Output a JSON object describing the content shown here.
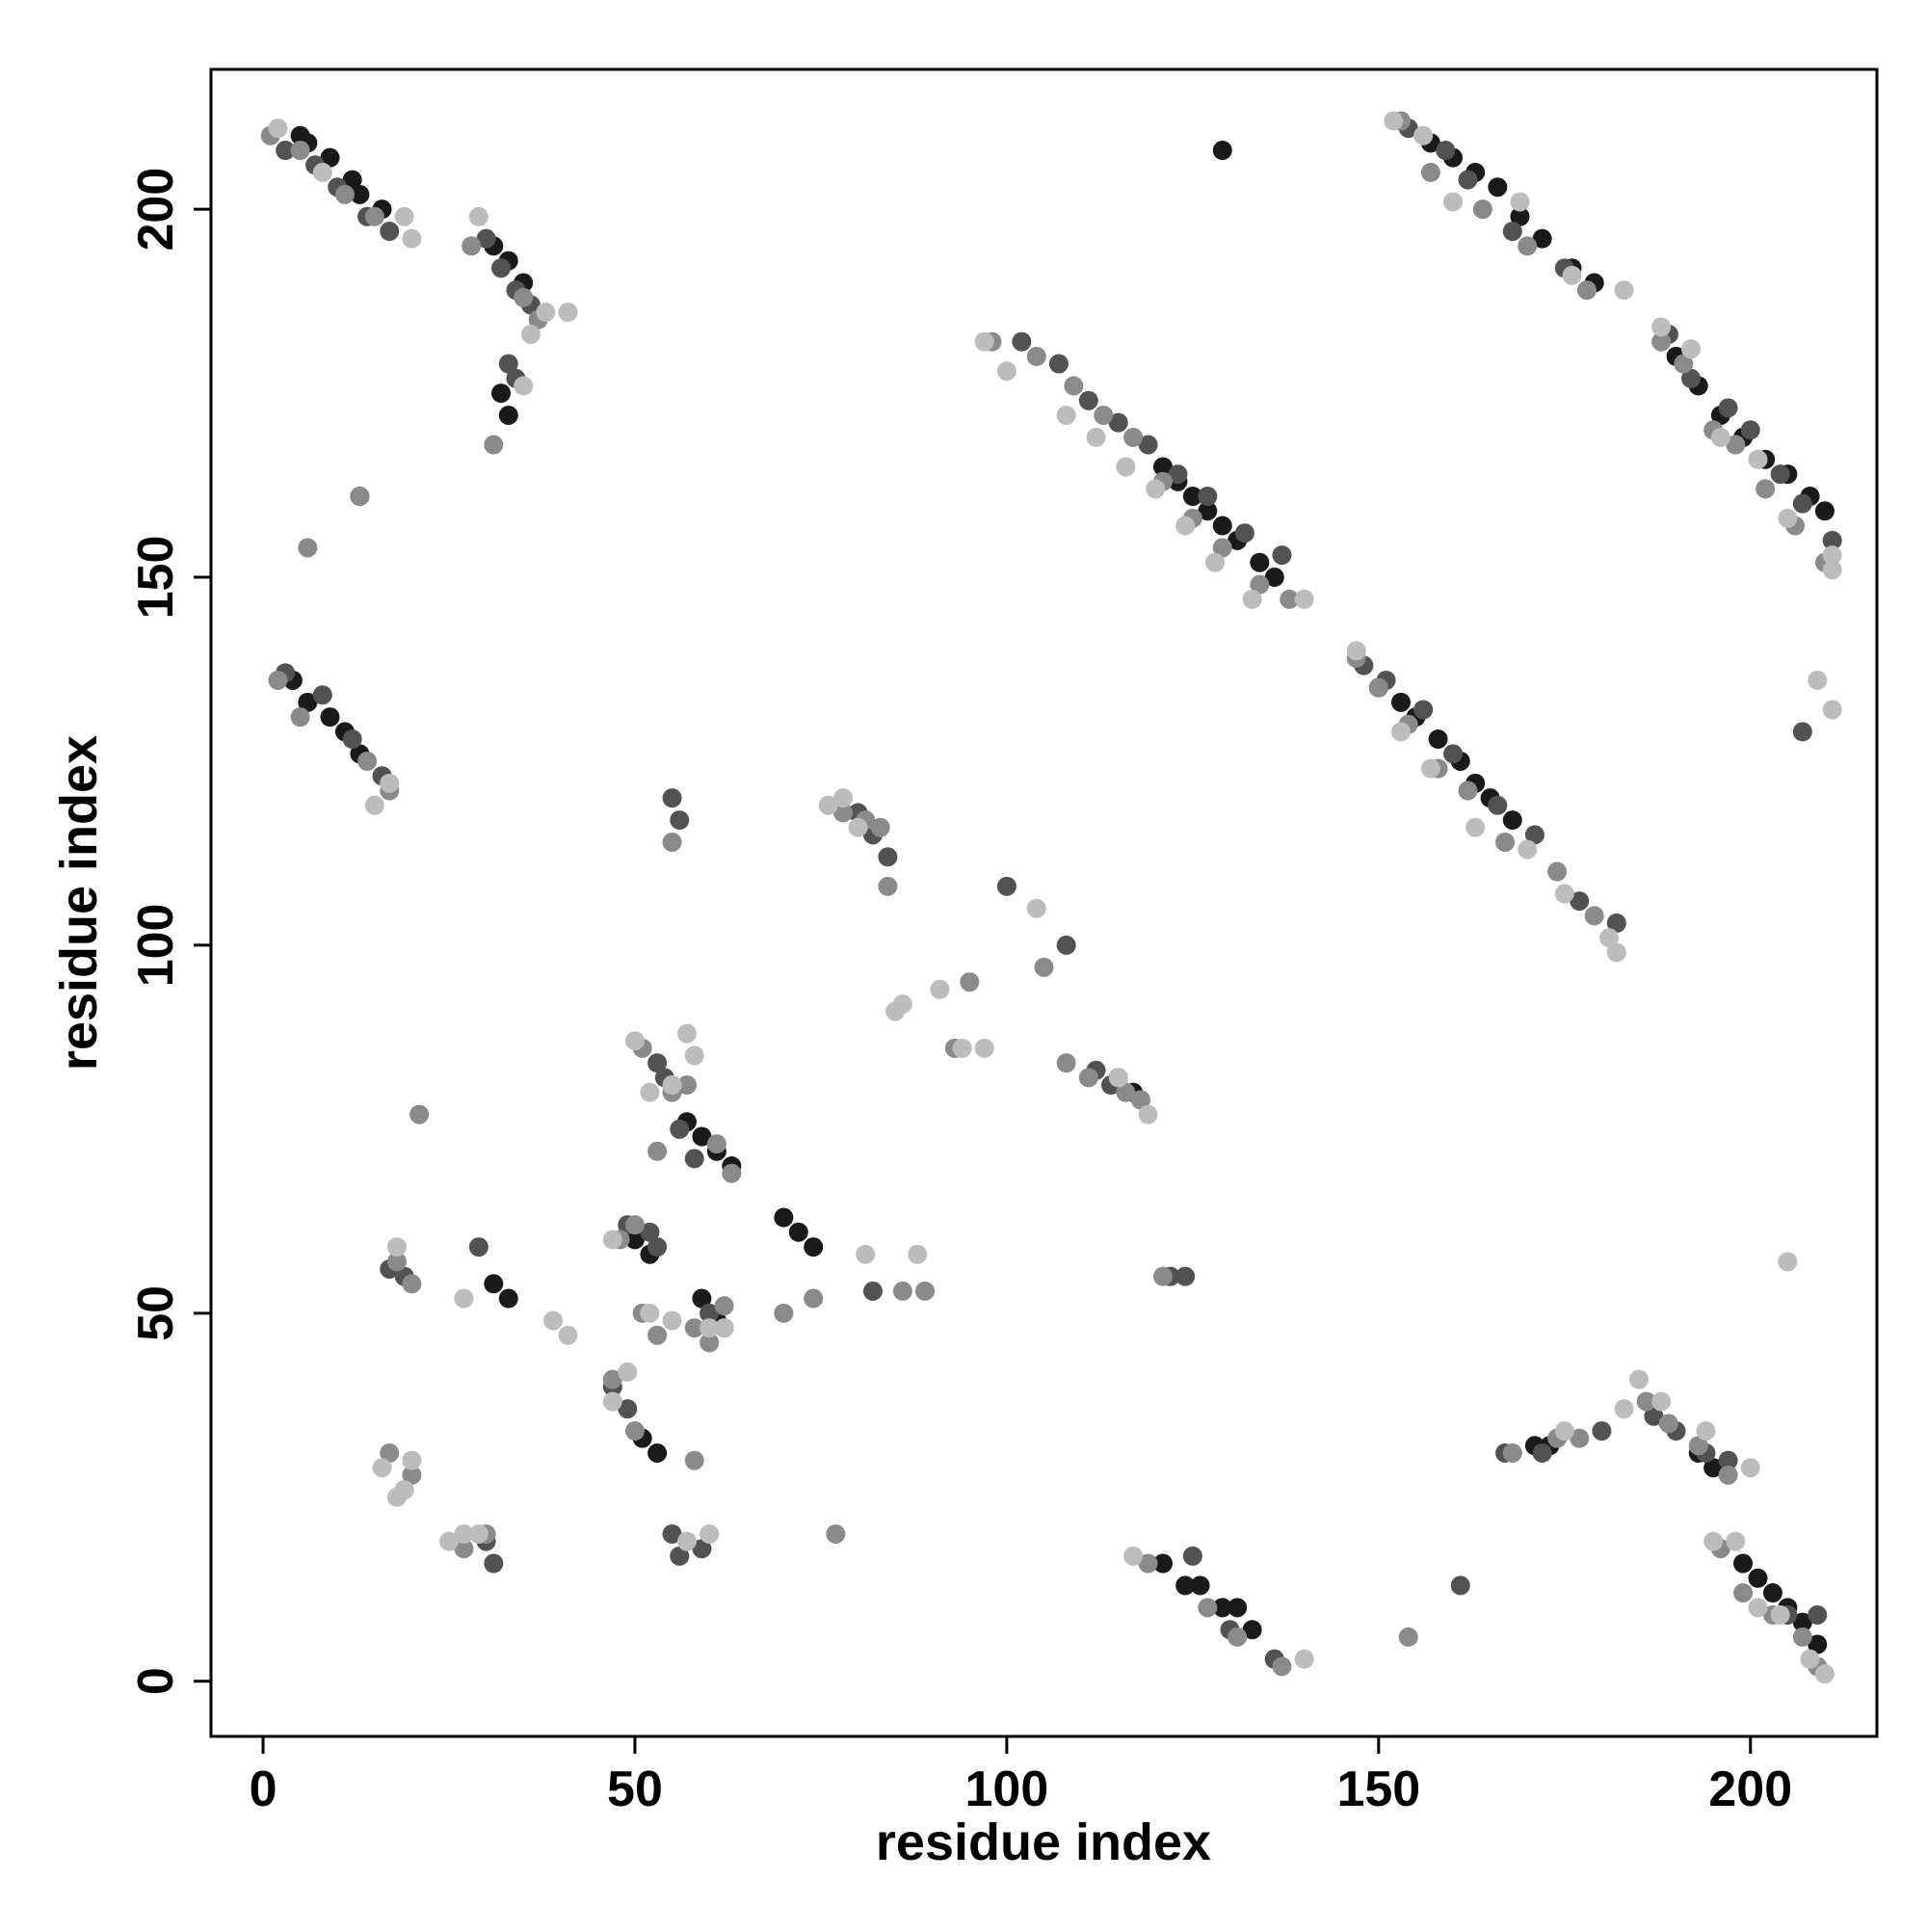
{
  "chart_data": {
    "type": "scatter",
    "xlabel": "residue index",
    "ylabel": "residue index",
    "xlim": [
      -7,
      217
    ],
    "ylim": [
      -7.5,
      219
    ],
    "xticks": [
      0,
      50,
      100,
      150,
      200
    ],
    "yticks": [
      0,
      50,
      100,
      150,
      200
    ],
    "series": [
      {
        "color": "#1a1a1a",
        "x": [
          5,
          6,
          9,
          12,
          13,
          16,
          31,
          33,
          35,
          32,
          33,
          121,
          123,
          125,
          127,
          129,
          131,
          134,
          136,
          150,
          153,
          155,
          158,
          161,
          163,
          165,
          168,
          157,
          160,
          163,
          166,
          169,
          172,
          176,
          179,
          190,
          193,
          196,
          199,
          202,
          205,
          208,
          210,
          4,
          6,
          9,
          11,
          13,
          193,
          195,
          199,
          201,
          203,
          205,
          207,
          209,
          121,
          124,
          126,
          129,
          131,
          133,
          136,
          57,
          59,
          61,
          63,
          50,
          52,
          70,
          72,
          74,
          59,
          61,
          31,
          33,
          51,
          53,
          115,
          117,
          171,
          173,
          129
        ],
        "y": [
          210,
          209,
          207,
          204,
          202,
          200,
          195,
          193,
          190,
          175,
          172,
          165,
          163,
          161,
          159,
          157,
          155,
          152,
          150,
          135,
          133,
          131,
          128,
          125,
          122,
          120,
          117,
          209,
          207,
          205,
          203,
          199,
          196,
          192,
          190,
          180,
          176,
          172,
          169,
          166,
          164,
          161,
          159,
          136,
          133,
          131,
          129,
          126,
          31,
          29,
          16,
          14,
          12,
          10,
          8,
          5,
          16,
          13,
          13,
          10,
          10,
          7,
          3,
          76,
          74,
          72,
          70,
          60,
          58,
          63,
          61,
          59,
          52,
          49,
          54,
          52,
          33,
          31,
          82,
          80,
          32,
          32,
          208
        ]
      },
      {
        "color": "#525252",
        "x": [
          3,
          7,
          10,
          14,
          17,
          30,
          32,
          34,
          36,
          33,
          34,
          102,
          107,
          111,
          115,
          119,
          123,
          127,
          132,
          137,
          148,
          151,
          156,
          160,
          166,
          171,
          177,
          182,
          154,
          159,
          162,
          168,
          175,
          189,
          192,
          197,
          200,
          204,
          207,
          211,
          3,
          8,
          12,
          16,
          187,
          190,
          194,
          197,
          167,
          172,
          180,
          205,
          209,
          125,
          130,
          136,
          55,
          56,
          49,
          52,
          53,
          55,
          56,
          59,
          80,
          82,
          84,
          112,
          114,
          118,
          17,
          19,
          30,
          31,
          53,
          54,
          47,
          49,
          60,
          62,
          56,
          58,
          100,
          108,
          13,
          161,
          82,
          207,
          122,
          124,
          29
        ],
        "y": [
          208,
          206,
          203,
          199,
          197,
          196,
          192,
          189,
          187,
          179,
          177,
          182,
          179,
          174,
          171,
          168,
          164,
          161,
          156,
          153,
          138,
          136,
          132,
          126,
          119,
          115,
          106,
          103,
          211,
          208,
          204,
          197,
          192,
          183,
          177,
          173,
          170,
          164,
          160,
          155,
          137,
          134,
          128,
          123,
          36,
          34,
          31,
          30,
          31,
          31,
          34,
          9,
          9,
          17,
          7,
          3,
          120,
          117,
          62,
          61,
          59,
          20,
          17,
          18,
          118,
          115,
          112,
          83,
          81,
          79,
          56,
          55,
          19,
          16,
          84,
          82,
          40,
          37,
          50,
          48,
          75,
          71,
          108,
          100,
          161,
          13,
          53,
          129,
          55,
          55,
          59
        ]
      },
      {
        "color": "#8a8a8a",
        "x": [
          1,
          5,
          11,
          15,
          28,
          35,
          37,
          31,
          98,
          104,
          109,
          113,
          117,
          121,
          125,
          129,
          134,
          138,
          147,
          150,
          154,
          158,
          162,
          167,
          174,
          179,
          153,
          157,
          164,
          170,
          178,
          188,
          191,
          195,
          198,
          202,
          206,
          210,
          2,
          5,
          14,
          17,
          186,
          189,
          193,
          197,
          174,
          177,
          196,
          199,
          203,
          207,
          119,
          127,
          131,
          137,
          55,
          48,
          50,
          51,
          53,
          57,
          61,
          63,
          78,
          81,
          83,
          84,
          93,
          95,
          111,
          116,
          118,
          18,
          20,
          17,
          19,
          20,
          27,
          30,
          51,
          55,
          58,
          60,
          62,
          47,
          50,
          70,
          74,
          86,
          89,
          6,
          13,
          21,
          108,
          105,
          168,
          209,
          77,
          121,
          154,
          53,
          58
        ],
        "y": [
          210,
          208,
          202,
          199,
          195,
          188,
          185,
          168,
          182,
          180,
          176,
          172,
          169,
          163,
          158,
          154,
          149,
          147,
          139,
          135,
          130,
          124,
          121,
          114,
          110,
          104,
          212,
          205,
          200,
          195,
          189,
          182,
          179,
          170,
          168,
          162,
          157,
          152,
          136,
          131,
          125,
          121,
          38,
          35,
          32,
          28,
          33,
          33,
          18,
          12,
          9,
          6,
          16,
          10,
          6,
          2,
          114,
          60,
          62,
          50,
          47,
          81,
          73,
          69,
          118,
          117,
          116,
          108,
          86,
          95,
          82,
          80,
          79,
          57,
          54,
          31,
          26,
          28,
          18,
          20,
          86,
          80,
          48,
          46,
          51,
          41,
          34,
          50,
          52,
          53,
          53,
          154,
          161,
          77,
          84,
          97,
          31,
          2,
          20,
          55,
          6,
          72,
          30
        ]
      },
      {
        "color": "#bcbcbc",
        "x": [
          2,
          8,
          19,
          20,
          29,
          38,
          41,
          36,
          35,
          97,
          100,
          108,
          112,
          116,
          120,
          124,
          128,
          133,
          140,
          147,
          153,
          157,
          163,
          170,
          175,
          181,
          182,
          152,
          156,
          160,
          169,
          176,
          183,
          188,
          192,
          196,
          201,
          205,
          211,
          211,
          17,
          15,
          185,
          188,
          194,
          200,
          175,
          183,
          195,
          198,
          201,
          204,
          208,
          210,
          117,
          140,
          55,
          47,
          49,
          50,
          52,
          55,
          57,
          58,
          76,
          78,
          80,
          85,
          86,
          91,
          94,
          115,
          119,
          18,
          19,
          20,
          16,
          18,
          25,
          27,
          29,
          52,
          55,
          57,
          60,
          39,
          41,
          27,
          47,
          62,
          60,
          88,
          104,
          97,
          209,
          211,
          81,
          205
        ],
        "y": [
          211,
          205,
          199,
          196,
          199,
          186,
          186,
          183,
          176,
          182,
          178,
          172,
          169,
          165,
          162,
          157,
          152,
          147,
          147,
          140,
          129,
          124,
          116,
          113,
          107,
          101,
          99,
          212,
          210,
          201,
          201,
          191,
          189,
          184,
          181,
          169,
          166,
          158,
          151,
          153,
          122,
          119,
          41,
          38,
          34,
          29,
          34,
          37,
          19,
          19,
          10,
          9,
          3,
          1,
          17,
          3,
          81,
          38,
          42,
          87,
          80,
          81,
          88,
          85,
          119,
          120,
          116,
          91,
          92,
          94,
          86,
          82,
          77,
          59,
          26,
          30,
          29,
          25,
          19,
          20,
          20,
          50,
          49,
          19,
          20,
          49,
          47,
          52,
          60,
          48,
          48,
          58,
          105,
          86,
          136,
          132,
          58,
          57
        ]
      }
    ]
  }
}
